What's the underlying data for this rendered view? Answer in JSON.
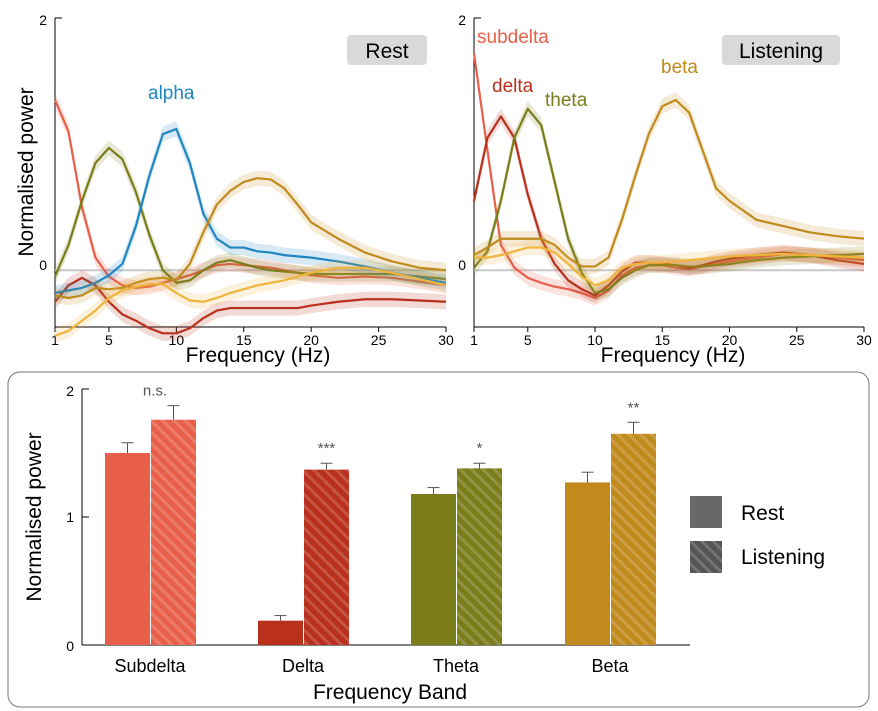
{
  "colors": {
    "subdelta": "#e8604a",
    "delta": "#b9301c",
    "theta": "#7a7d1a",
    "beta": "#c08a1c",
    "alpha": "#1f86c0",
    "yellow": "#f0b43c",
    "baseline": "#c8c8c8",
    "panel_label_bg": "#d9d9d9",
    "sig_text": "#555555",
    "bar_border": "#777777"
  },
  "top": {
    "xlabel": "Frequency (Hz)",
    "ylabel": "Normalised power",
    "yticks": [
      "2",
      "0"
    ],
    "xticks": [
      "1",
      "5",
      "10",
      "15",
      "20",
      "25",
      "30"
    ],
    "left": {
      "panel_label": "Rest",
      "curve_labels": [
        {
          "key": "alpha",
          "text": "alpha"
        }
      ]
    },
    "right": {
      "panel_label": "Listening",
      "curve_labels": [
        {
          "key": "subdelta",
          "text": "subdelta"
        },
        {
          "key": "delta",
          "text": "delta"
        },
        {
          "key": "theta",
          "text": "theta"
        },
        {
          "key": "beta",
          "text": "beta"
        }
      ]
    }
  },
  "bottom": {
    "ylabel": "Normalised power",
    "xlabel": "Frequency Band",
    "yticks": [
      "2",
      "1",
      "0"
    ],
    "legend": [
      {
        "key": "rest",
        "text": "Rest"
      },
      {
        "key": "listening",
        "text": "Listening"
      }
    ]
  },
  "chart_data": [
    {
      "type": "line",
      "panel": "Rest",
      "xlabel": "Frequency (Hz)",
      "ylabel": "Normalised power",
      "xlim": [
        1,
        30
      ],
      "ylim": [
        -0.45,
        2
      ],
      "x": [
        1,
        2,
        3,
        4,
        5,
        6,
        7,
        8,
        9,
        10,
        11,
        12,
        13,
        14,
        15,
        16,
        17,
        18,
        19,
        20,
        22,
        24,
        26,
        28,
        30
      ],
      "series": [
        {
          "key": "subdelta",
          "values": [
            1.35,
            1.1,
            0.5,
            0.1,
            -0.05,
            -0.12,
            -0.14,
            -0.13,
            -0.1,
            -0.07,
            -0.04,
            0.0,
            0.04,
            0.05,
            0.04,
            0.03,
            0.02,
            0.0,
            -0.02,
            -0.04,
            -0.06,
            -0.05,
            -0.06,
            -0.09,
            -0.12
          ]
        },
        {
          "key": "delta",
          "values": [
            -0.25,
            -0.12,
            -0.06,
            -0.12,
            -0.25,
            -0.35,
            -0.4,
            -0.46,
            -0.5,
            -0.5,
            -0.46,
            -0.38,
            -0.32,
            -0.3,
            -0.3,
            -0.3,
            -0.3,
            -0.3,
            -0.3,
            -0.28,
            -0.25,
            -0.23,
            -0.23,
            -0.24,
            -0.25
          ]
        },
        {
          "key": "theta",
          "values": [
            -0.05,
            0.2,
            0.55,
            0.85,
            0.97,
            0.88,
            0.62,
            0.28,
            0.0,
            -0.1,
            -0.08,
            0.0,
            0.06,
            0.08,
            0.05,
            0.02,
            0.0,
            -0.01,
            -0.02,
            -0.03,
            -0.03,
            -0.03,
            -0.03,
            -0.05,
            -0.07
          ]
        },
        {
          "key": "alpha",
          "values": [
            -0.18,
            -0.16,
            -0.14,
            -0.1,
            -0.04,
            0.05,
            0.35,
            0.75,
            1.08,
            1.12,
            0.85,
            0.45,
            0.25,
            0.18,
            0.18,
            0.15,
            0.14,
            0.12,
            0.11,
            0.1,
            0.07,
            0.03,
            -0.02,
            -0.06,
            -0.1
          ]
        },
        {
          "key": "beta",
          "values": [
            -0.2,
            -0.22,
            -0.2,
            -0.14,
            -0.15,
            -0.14,
            -0.1,
            -0.07,
            -0.06,
            -0.08,
            0.05,
            0.3,
            0.52,
            0.63,
            0.7,
            0.73,
            0.72,
            0.65,
            0.52,
            0.38,
            0.25,
            0.14,
            0.07,
            0.02,
            0.0
          ]
        },
        {
          "key": "yellow",
          "values": [
            -0.52,
            -0.48,
            -0.4,
            -0.32,
            -0.22,
            -0.16,
            -0.13,
            -0.11,
            -0.11,
            -0.18,
            -0.24,
            -0.25,
            -0.22,
            -0.18,
            -0.15,
            -0.12,
            -0.1,
            -0.08,
            -0.05,
            -0.02,
            0.02,
            0.02,
            -0.02,
            -0.07,
            -0.12
          ]
        }
      ]
    },
    {
      "type": "line",
      "panel": "Listening",
      "xlabel": "Frequency (Hz)",
      "xlim": [
        1,
        30
      ],
      "ylim": [
        -0.45,
        2
      ],
      "x": [
        1,
        2,
        3,
        4,
        5,
        6,
        7,
        8,
        9,
        10,
        11,
        12,
        13,
        14,
        15,
        16,
        17,
        18,
        19,
        20,
        22,
        24,
        26,
        28,
        30
      ],
      "series": [
        {
          "key": "subdelta",
          "values": [
            1.72,
            0.95,
            0.2,
            0.02,
            -0.06,
            -0.1,
            -0.13,
            -0.15,
            -0.18,
            -0.22,
            -0.16,
            -0.04,
            0.02,
            0.04,
            0.04,
            0.02,
            0.01,
            0.03,
            0.05,
            0.07,
            0.1,
            0.13,
            0.12,
            0.1,
            0.08
          ]
        },
        {
          "key": "delta",
          "values": [
            0.55,
            1.05,
            1.22,
            1.05,
            0.6,
            0.25,
            0.05,
            -0.08,
            -0.15,
            -0.2,
            -0.12,
            -0.01,
            0.06,
            0.06,
            0.05,
            0.04,
            0.02,
            0.04,
            0.07,
            0.09,
            0.12,
            0.14,
            0.12,
            0.08,
            0.05
          ]
        },
        {
          "key": "theta",
          "values": [
            0.02,
            0.15,
            0.55,
            1.05,
            1.28,
            1.15,
            0.7,
            0.25,
            -0.02,
            -0.18,
            -0.15,
            -0.06,
            0.0,
            0.04,
            0.04,
            0.04,
            0.03,
            0.03,
            0.04,
            0.05,
            0.08,
            0.1,
            0.11,
            0.12,
            0.13
          ]
        },
        {
          "key": "beta",
          "values": [
            0.12,
            0.18,
            0.25,
            0.25,
            0.25,
            0.25,
            0.2,
            0.1,
            0.03,
            0.03,
            0.1,
            0.4,
            0.75,
            1.08,
            1.3,
            1.35,
            1.25,
            0.95,
            0.65,
            0.55,
            0.4,
            0.35,
            0.3,
            0.27,
            0.25
          ]
        },
        {
          "key": "yellow",
          "values": [
            0.1,
            0.1,
            0.12,
            0.15,
            0.18,
            0.18,
            0.14,
            0.05,
            -0.05,
            -0.12,
            -0.08,
            0.02,
            0.05,
            0.06,
            0.06,
            0.07,
            0.08,
            0.09,
            0.1,
            0.11,
            0.12,
            0.13,
            0.12,
            0.11,
            0.1
          ]
        }
      ]
    },
    {
      "type": "bar",
      "xlabel": "Frequency Band",
      "ylabel": "Normalised power",
      "ylim": [
        0,
        2
      ],
      "categories": [
        "Subdelta",
        "Delta",
        "Theta",
        "Beta"
      ],
      "series": [
        {
          "name": "Rest",
          "values": [
            1.5,
            0.19,
            1.18,
            1.27
          ],
          "errors": [
            0.08,
            0.04,
            0.05,
            0.08
          ]
        },
        {
          "name": "Listening",
          "values": [
            1.76,
            1.37,
            1.38,
            1.65
          ],
          "errors": [
            0.11,
            0.05,
            0.04,
            0.09
          ]
        }
      ],
      "significance": [
        "n.s.",
        "***",
        "*",
        "**"
      ]
    }
  ]
}
